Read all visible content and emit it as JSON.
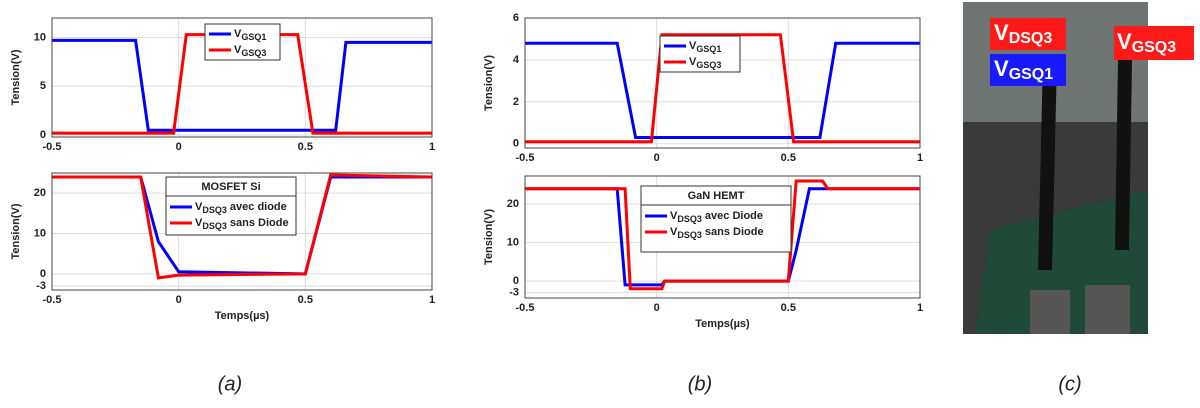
{
  "chart_data": [
    {
      "type": "line",
      "ylabel": "Tension(V)",
      "xlim": [
        -0.5,
        1
      ],
      "xticks": [
        -0.5,
        0,
        0.5,
        1
      ],
      "ylim": [
        -0.2,
        12
      ],
      "yticks": [
        0,
        5,
        10
      ],
      "grid": true,
      "x": [
        -0.5,
        -0.17,
        -0.12,
        -0.02,
        0.03,
        0.47,
        0.53,
        0.62,
        0.66,
        1
      ],
      "series": [
        {
          "name": [
            "V",
            "GSQ1",
            ""
          ],
          "color": "#0000ff",
          "values": [
            9.7,
            9.7,
            0.5,
            0.5,
            0.5,
            0.5,
            0.5,
            0.5,
            9.5,
            9.5
          ]
        },
        {
          "name": [
            "V",
            "GSQ3",
            ""
          ],
          "color": "#ff0000",
          "values": [
            0.2,
            0.2,
            0.2,
            0.2,
            10.3,
            10.3,
            0.2,
            0.2,
            0.2,
            0.2
          ]
        }
      ]
    },
    {
      "type": "line",
      "ylabel": "Tension(V)",
      "xlabel": "Temps(µs)",
      "legend_title": "MOSFET Si",
      "xlim": [
        -0.5,
        1
      ],
      "xticks": [
        -0.5,
        0,
        0.5,
        1
      ],
      "ylim": [
        -4,
        25
      ],
      "yticks": [
        -3,
        0,
        10,
        20
      ],
      "grid": true,
      "x": [
        -0.5,
        -0.15,
        -0.08,
        0,
        0.5,
        0.6,
        1
      ],
      "series": [
        {
          "name": [
            "V",
            "DSQ3",
            " avec diode"
          ],
          "color": "#0000ff",
          "values": [
            24,
            24,
            8,
            0.5,
            0,
            24,
            24
          ]
        },
        {
          "name": [
            "V",
            "DSQ3",
            " sans Diode"
          ],
          "color": "#ff0000",
          "values": [
            24,
            24,
            -1,
            -0.3,
            0,
            24.5,
            24
          ]
        }
      ]
    },
    {
      "type": "line",
      "ylabel": "Tension(V)",
      "xlim": [
        -0.5,
        1
      ],
      "xticks": [
        -0.5,
        0,
        0.5,
        1
      ],
      "ylim": [
        -0.2,
        6
      ],
      "yticks": [
        0,
        2,
        4,
        6
      ],
      "grid": true,
      "x": [
        -0.5,
        -0.15,
        -0.08,
        -0.02,
        0.02,
        0.47,
        0.52,
        0.62,
        0.68,
        1
      ],
      "series": [
        {
          "name": [
            "V",
            "GSQ1",
            ""
          ],
          "color": "#0000ff",
          "values": [
            4.8,
            4.8,
            0.3,
            0.3,
            0.3,
            0.3,
            0.3,
            0.3,
            4.8,
            4.8
          ]
        },
        {
          "name": [
            "V",
            "GSQ3",
            ""
          ],
          "color": "#ff0000",
          "values": [
            0.1,
            0.1,
            0.1,
            0.1,
            5.2,
            5.2,
            0.1,
            0.1,
            0.1,
            0.1
          ]
        }
      ]
    },
    {
      "type": "line",
      "ylabel": "Tension(V)",
      "xlabel": "Temps(µs)",
      "legend_title": "GaN HEMT",
      "xlim": [
        -0.5,
        1
      ],
      "xticks": [
        -0.5,
        0,
        0.5,
        1
      ],
      "ylim": [
        -4.4,
        27.3
      ],
      "yticks": [
        -3,
        0,
        10,
        20
      ],
      "grid": true,
      "x": [
        -0.5,
        -0.15,
        -0.12,
        -0.1,
        0.02,
        0.03,
        0.5,
        0.53,
        0.58,
        0.63,
        0.65,
        1
      ],
      "series": [
        {
          "name": [
            "V",
            "DSQ3",
            " avec Diode"
          ],
          "color": "#0000ff",
          "values": [
            24,
            24,
            -1,
            -1,
            -1,
            0,
            0,
            8,
            24,
            24,
            24,
            24
          ]
        },
        {
          "name": [
            "V",
            "DSQ3",
            " sans Diode"
          ],
          "color": "#ff0000",
          "values": [
            24,
            24,
            24,
            -2,
            -2,
            0,
            0,
            26,
            26,
            26,
            24,
            24
          ]
        }
      ]
    }
  ],
  "photo": {
    "labels": [
      [
        "V",
        "DSQ3"
      ],
      [
        "V",
        "GSQ1"
      ],
      [
        "V",
        "GSQ3"
      ]
    ]
  },
  "captions": [
    "(a)",
    "(b)",
    "(c)"
  ]
}
